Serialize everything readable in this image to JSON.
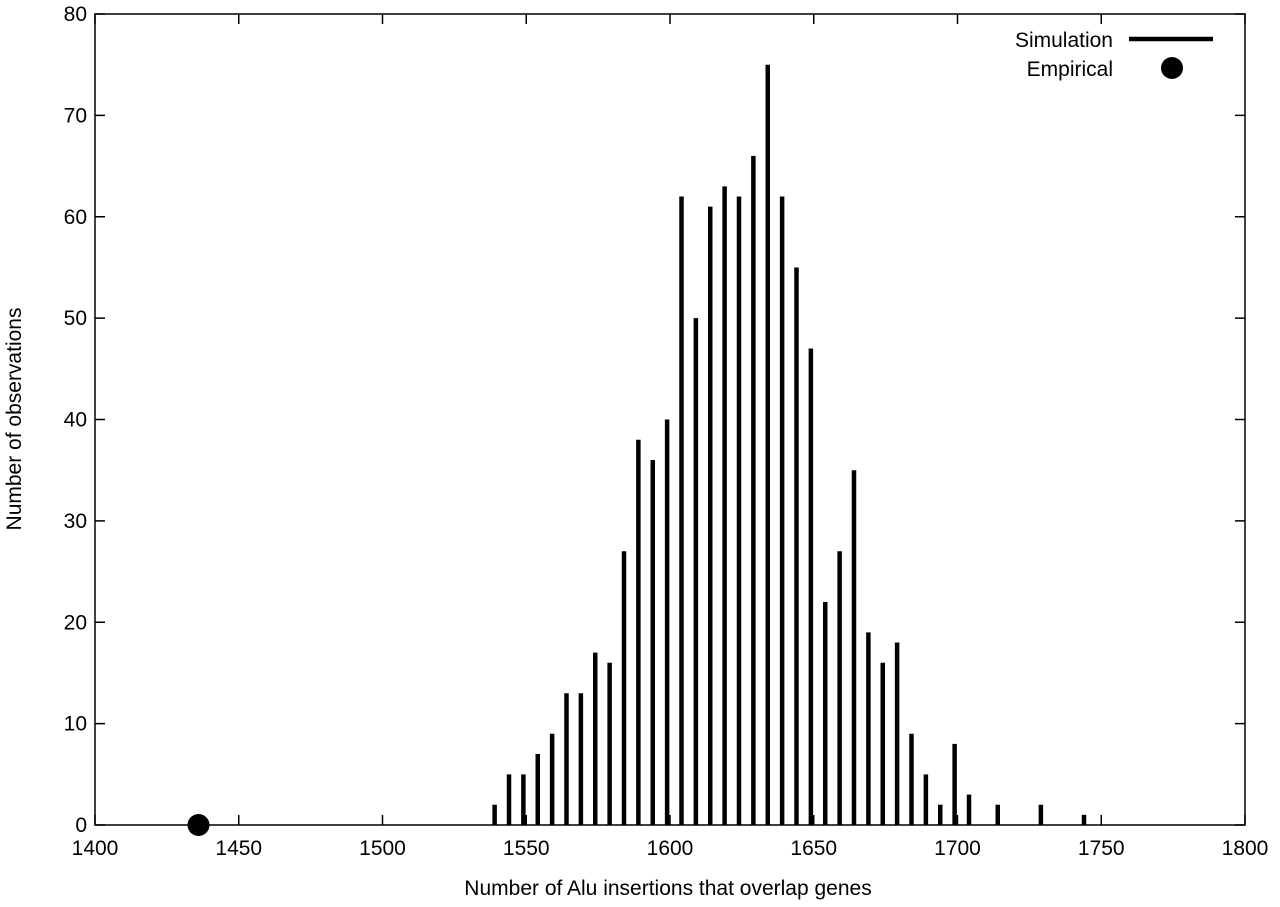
{
  "chart_data": {
    "type": "bar",
    "xlabel": "Number of Alu insertions that overlap genes",
    "ylabel": "Number of observations",
    "xlim": [
      1400,
      1800
    ],
    "ylim": [
      0,
      80
    ],
    "x_ticks": [
      1400,
      1450,
      1500,
      1550,
      1600,
      1650,
      1700,
      1750,
      1800
    ],
    "y_ticks": [
      0,
      10,
      20,
      30,
      40,
      50,
      60,
      70,
      80
    ],
    "grid": false,
    "legend_position": "top-right",
    "series": [
      {
        "name": "Simulation",
        "style": "impulses",
        "color": "#000000",
        "x": [
          1539,
          1544,
          1549,
          1554,
          1559,
          1564,
          1569,
          1574,
          1579,
          1584,
          1589,
          1594,
          1599,
          1604,
          1609,
          1614,
          1619,
          1624,
          1629,
          1634,
          1639,
          1644,
          1649,
          1654,
          1659,
          1664,
          1669,
          1674,
          1679,
          1684,
          1689,
          1694,
          1699,
          1704,
          1714,
          1729,
          1744
        ],
        "values": [
          2,
          5,
          5,
          7,
          9,
          13,
          13,
          17,
          16,
          27,
          38,
          36,
          40,
          62,
          50,
          61,
          63,
          62,
          66,
          75,
          62,
          55,
          47,
          22,
          27,
          35,
          19,
          16,
          18,
          9,
          5,
          2,
          8,
          3,
          2,
          2,
          1
        ]
      },
      {
        "name": "Empirical",
        "style": "point",
        "color": "#000000",
        "x": [
          1436
        ],
        "values": [
          0
        ]
      }
    ]
  }
}
